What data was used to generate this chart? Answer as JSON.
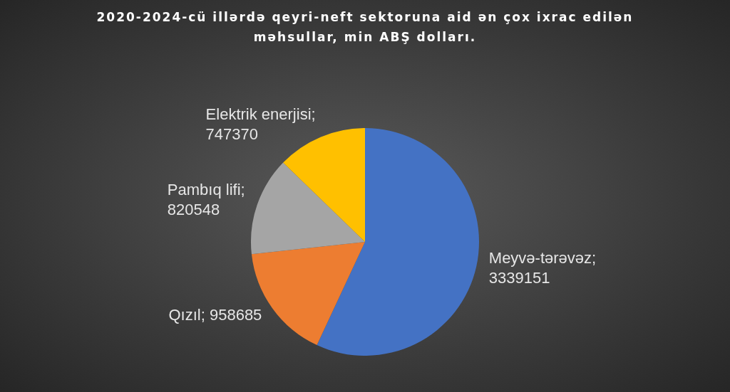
{
  "chart_data": {
    "type": "pie",
    "title": "2020-2024-cü illərdə qeyri-neft sektoruna aid ən çox ixrac edilən məhsullar, min ABŞ dolları.",
    "categories": [
      "Meyvə-tərəvəz",
      "Qızıl",
      "Pambıq lifi",
      "Elektrik enerjisi"
    ],
    "values": [
      3339151,
      958685,
      820548,
      747370
    ],
    "value_labels": [
      "; 3339151",
      "; 958685",
      "; 820548",
      "; 747370"
    ],
    "colors": [
      "#4472c4",
      "#ed7d31",
      "#a5a5a5",
      "#ffc000"
    ],
    "legend": false
  }
}
